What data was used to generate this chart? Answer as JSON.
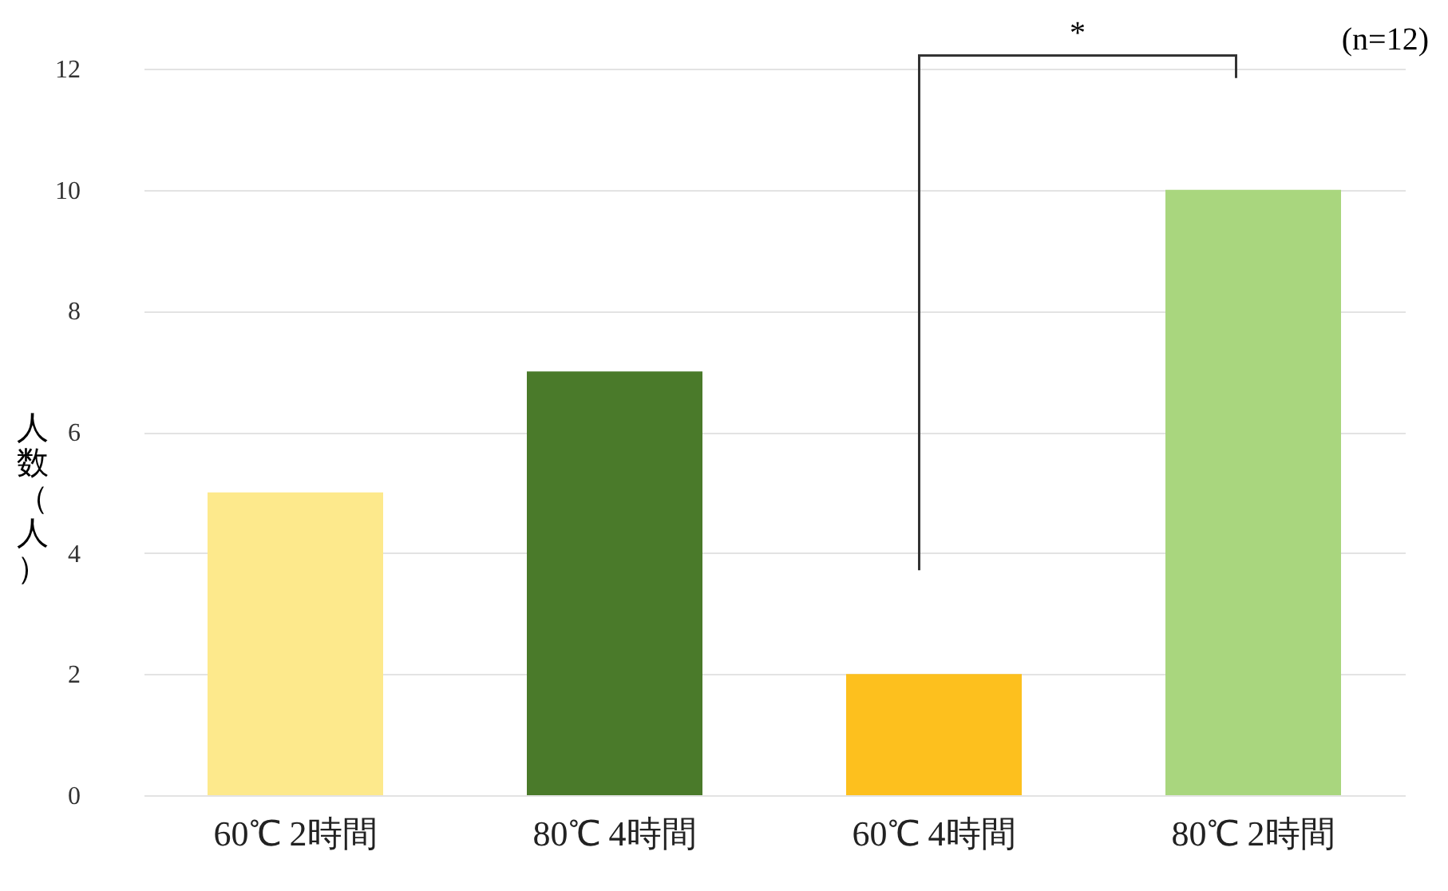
{
  "chart_data": {
    "type": "bar",
    "ylabel": "人数（人）",
    "categories": [
      "60℃ 2時間",
      "80℃ 4時間",
      "60℃ 4時間",
      "80℃ 2時間"
    ],
    "values": [
      5,
      7,
      2,
      10
    ],
    "colors": [
      "#fde98c",
      "#4a7a2a",
      "#fdc01e",
      "#a9d67e"
    ],
    "ylim": [
      0,
      12
    ],
    "yticks": [
      0,
      2,
      4,
      6,
      8,
      10,
      12
    ],
    "grid": "y",
    "annotations": [
      "(n=12)",
      "*"
    ]
  }
}
